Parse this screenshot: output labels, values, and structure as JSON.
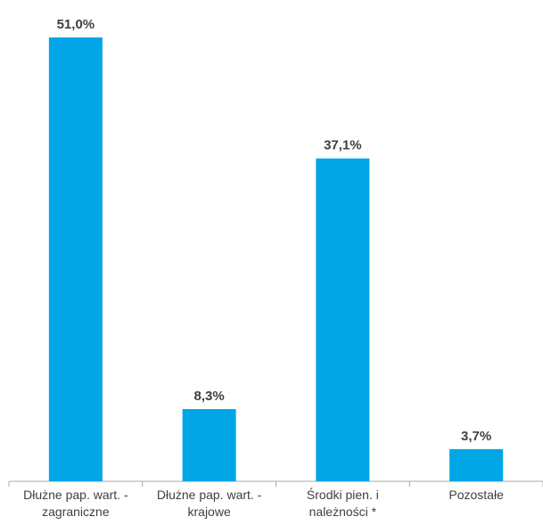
{
  "chart_data": {
    "type": "bar",
    "title": "",
    "xlabel": "",
    "ylabel": "",
    "categories": [
      [
        "Dłużne pap. wart. -",
        "zagraniczne"
      ],
      [
        "Dłużne pap. wart. -",
        "krajowe"
      ],
      [
        "Środki pien. i",
        "należności *"
      ],
      [
        "Pozostałe"
      ]
    ],
    "values": [
      51.0,
      8.3,
      37.1,
      3.7
    ],
    "value_labels": [
      "51,0%",
      "8,3%",
      "37,1%",
      "3,7%"
    ],
    "ylim": [
      0,
      51.0
    ],
    "legend": "none",
    "grid": false,
    "colors": {
      "bar": "#00A6E6",
      "axis": "#a8a8a8",
      "value_label": "#404040",
      "category_label": "#404040"
    }
  }
}
